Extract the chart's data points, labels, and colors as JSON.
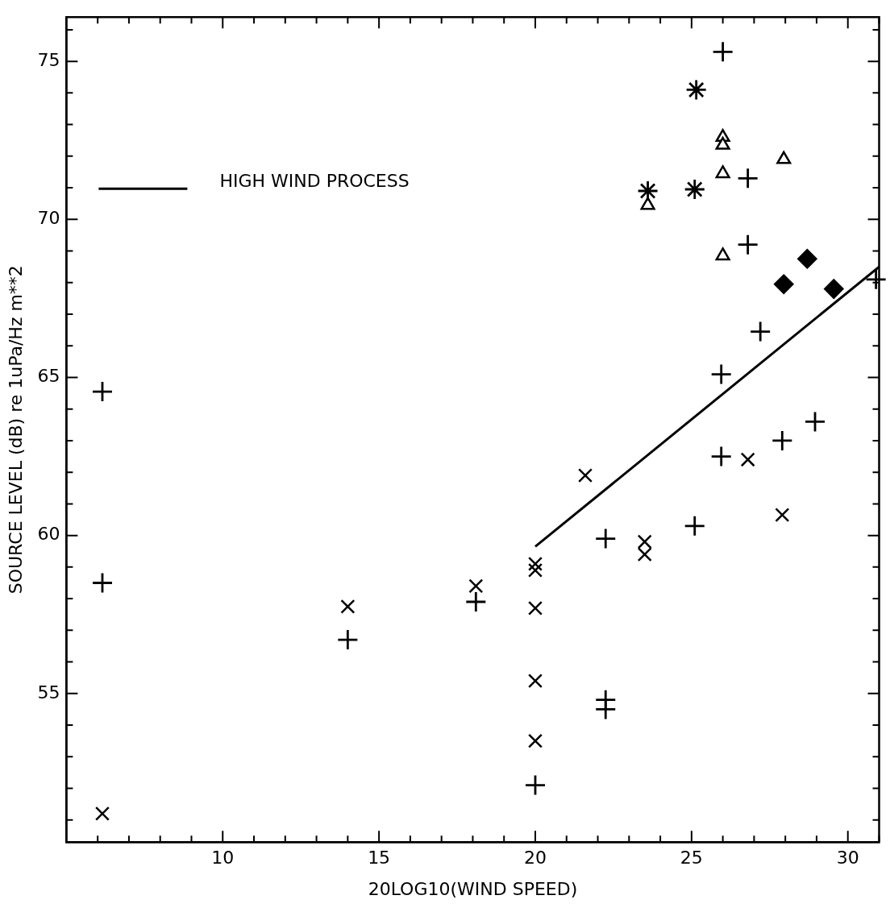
{
  "chart_data": {
    "type": "scatter",
    "xlabel": "20LOG10(WIND SPEED)",
    "ylabel": "SOURCE LEVEL (dB) re 1uPa/Hz m**2",
    "xlim": [
      5,
      31
    ],
    "ylim": [
      50.3,
      76.4
    ],
    "xticks": [
      {
        "value": 6,
        "label": null
      },
      {
        "value": 7,
        "label": null
      },
      {
        "value": 8,
        "label": null
      },
      {
        "value": 9,
        "label": null
      },
      10,
      {
        "value": 11,
        "label": null
      },
      {
        "value": 12,
        "label": null
      },
      {
        "value": 13,
        "label": null
      },
      {
        "value": 14,
        "label": null
      },
      15,
      {
        "value": 16,
        "label": null
      },
      {
        "value": 17,
        "label": null
      },
      {
        "value": 18,
        "label": null
      },
      {
        "value": 19,
        "label": null
      },
      20,
      {
        "value": 21,
        "label": null
      },
      {
        "value": 22,
        "label": null
      },
      {
        "value": 23,
        "label": null
      },
      {
        "value": 24,
        "label": null
      },
      25,
      {
        "value": 26,
        "label": null
      },
      {
        "value": 27,
        "label": null
      },
      {
        "value": 28,
        "label": null
      },
      {
        "value": 29,
        "label": null
      },
      30,
      {
        "value": 31,
        "label": null
      }
    ],
    "yticks": [
      {
        "value": 51,
        "label": null
      },
      {
        "value": 52,
        "label": null
      },
      {
        "value": 53,
        "label": null
      },
      {
        "value": 54,
        "label": null
      },
      55,
      {
        "value": 56,
        "label": null
      },
      {
        "value": 57,
        "label": null
      },
      {
        "value": 58,
        "label": null
      },
      {
        "value": 59,
        "label": null
      },
      60,
      {
        "value": 61,
        "label": null
      },
      {
        "value": 62,
        "label": null
      },
      {
        "value": 63,
        "label": null
      },
      {
        "value": 64,
        "label": null
      },
      65,
      {
        "value": 66,
        "label": null
      },
      {
        "value": 67,
        "label": null
      },
      {
        "value": 68,
        "label": null
      },
      {
        "value": 69,
        "label": null
      },
      70,
      {
        "value": 71,
        "label": null
      },
      {
        "value": 72,
        "label": null
      },
      {
        "value": 73,
        "label": null
      },
      {
        "value": 74,
        "label": null
      },
      75,
      {
        "value": 76,
        "label": null
      }
    ],
    "grid": false,
    "legend": "top left",
    "series": [
      {
        "type": "line",
        "name": "HIGH WIND PROCESS",
        "color": "#000000",
        "marker": "none",
        "line_style": "solid",
        "x": [
          20,
          31
        ],
        "values": [
          59.65,
          68.5
        ]
      },
      {
        "color": "#000000",
        "marker": "cross",
        "x": [
          6.15,
          6.15,
          14,
          18.1,
          20,
          22.25,
          22.25,
          22.25,
          25.1,
          25.95,
          25.95,
          27.9,
          28.95,
          27.2,
          26,
          26.8,
          26.8,
          30.9
        ],
        "values": [
          64.55,
          58.5,
          56.7,
          57.9,
          52.1,
          54.8,
          54.5,
          59.9,
          60.3,
          62.5,
          65.1,
          63,
          63.6,
          66.45,
          75.3,
          71.3,
          69.2,
          68.1
        ]
      },
      {
        "color": "#000000",
        "marker": "x",
        "x": [
          6.15,
          14,
          18.1,
          20,
          20,
          20,
          20,
          20,
          21.6,
          26.8,
          27.9,
          23.5,
          23.5
        ],
        "values": [
          51.2,
          57.75,
          58.4,
          59.1,
          58.9,
          57.7,
          55.4,
          53.5,
          61.9,
          62.4,
          60.65,
          59.8,
          59.4
        ]
      },
      {
        "color": "#000000",
        "marker": "star",
        "x": [
          25.15,
          23.6,
          25.1
        ],
        "values": [
          74.1,
          70.9,
          70.95
        ]
      },
      {
        "color": "#000000",
        "marker": "triangle",
        "x": [
          26,
          26,
          26,
          27.95,
          23.6,
          26
        ],
        "values": [
          72.6,
          72.35,
          71.45,
          71.9,
          70.45,
          68.85
        ]
      },
      {
        "color": "#000000",
        "marker": "diamond",
        "x": [
          27.95,
          28.7,
          29.55
        ],
        "values": [
          67.95,
          68.75,
          67.8
        ]
      }
    ]
  }
}
